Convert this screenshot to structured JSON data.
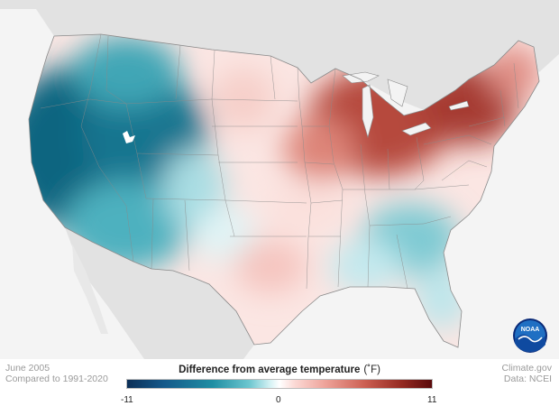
{
  "date": "June 2005",
  "comparison": "Compared to 1991-2020",
  "legend": {
    "title": "Difference from average temperature",
    "unit": "(˚F)",
    "min_label": "-11",
    "mid_label": "0",
    "max_label": "11",
    "range": [
      -11,
      11
    ],
    "colors": [
      "#0c2f57",
      "#15598a",
      "#1f8ea3",
      "#6cc6cf",
      "#d6f2f4",
      "#ffffff",
      "#fbd9d5",
      "#eea39a",
      "#cc5f52",
      "#952a22",
      "#5a0a0b"
    ]
  },
  "credit": {
    "source": "Climate.gov",
    "data": "Data: NCEI"
  },
  "logo": {
    "icon": "noaa-logo-icon",
    "text": "NOAA"
  },
  "colors": {
    "land_outside": "#e2e2e2",
    "water": "#f3f3f3",
    "state_border": "#8a8a8a",
    "cold_strong": "#0e6580",
    "cold_light": "#9ad8df",
    "warm_strong": "#8f2a22",
    "warm_light": "#f2b8b0"
  },
  "regions": {
    "west": "cold anomaly",
    "northeast_great_lakes": "warm anomaly",
    "southeast": "slight cold anomaly",
    "texas": "slight warm anomaly"
  }
}
